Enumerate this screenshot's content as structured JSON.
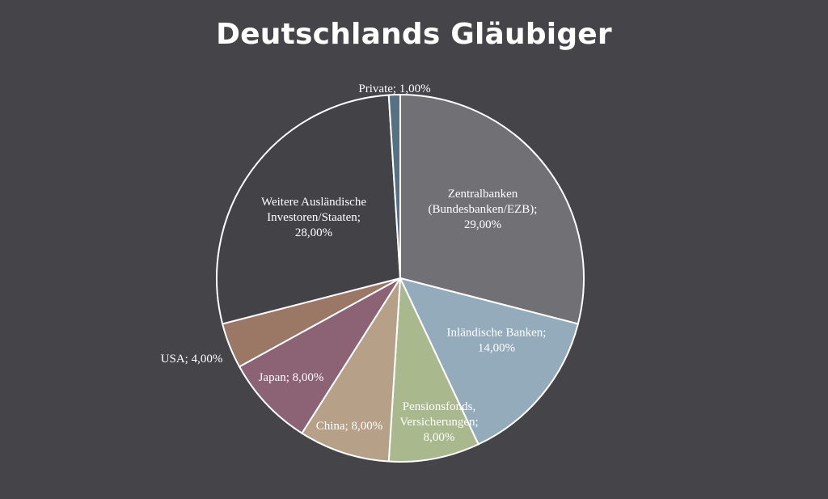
{
  "chart_data": {
    "type": "pie",
    "title": "Deutschlands Gläubiger",
    "start_angle_deg": 0,
    "direction": "clockwise",
    "slices": [
      {
        "name": "Zentralbanken (Bundesbanken/EZB)",
        "value": 29,
        "label_lines": [
          "Zentralbanken",
          "(Bundesbanken/EZB);",
          "29,00%"
        ],
        "color": "#717075"
      },
      {
        "name": "Inländische Banken",
        "value": 14,
        "label_lines": [
          "Inländische Banken;",
          "14,00%"
        ],
        "color": "#94abbb"
      },
      {
        "name": "Pensionsfonds, Versicherungen",
        "value": 8,
        "label_lines": [
          "Pensionsfonds,",
          "Versicherungen;",
          "8,00%"
        ],
        "color": "#a9b88d"
      },
      {
        "name": "China",
        "value": 8,
        "label_lines": [
          "China; 8,00%"
        ],
        "color": "#b6a088"
      },
      {
        "name": "Japan",
        "value": 8,
        "label_lines": [
          "Japan; 8,00%"
        ],
        "color": "#8b6374"
      },
      {
        "name": "USA",
        "value": 4,
        "label_lines": [
          "USA; 4,00%"
        ],
        "color": "#9b7766"
      },
      {
        "name": "Weitere Ausländische Investoren/Staaten",
        "value": 28,
        "label_lines": [
          "Weitere Ausländische",
          "Investoren/Staaten;",
          "28,00%"
        ],
        "color": "#434247"
      },
      {
        "name": "Private",
        "value": 1,
        "label_lines": [
          "Private; 1,00%"
        ],
        "color": "#557184"
      }
    ]
  }
}
